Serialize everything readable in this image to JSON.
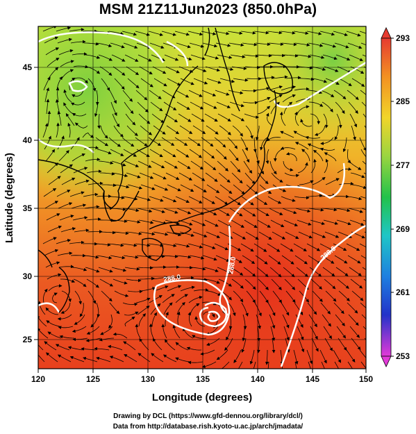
{
  "header": {
    "title": "MSM 21Z11Jun2023 (850.0hPa)"
  },
  "axes": {
    "xlabel": "Longitude (degrees)",
    "ylabel": "Latitude  (degrees)",
    "xticks": [
      "120",
      "125",
      "130",
      "135",
      "140",
      "145",
      "150"
    ],
    "yticks": [
      "25",
      "30",
      "35",
      "40",
      "45"
    ],
    "xlim": [
      120,
      150
    ],
    "ylim": [
      22.5,
      47.5
    ]
  },
  "colorbar": {
    "labels": [
      "293",
      "285",
      "277",
      "269",
      "261",
      "253"
    ],
    "min": 253,
    "max": 293
  },
  "contour_labels": [
    "285.0",
    "288.0",
    "288.0",
    "288.0"
  ],
  "colors": {
    "warm": "#e83a1c",
    "mid": "#f3a21f",
    "cool": "#8ed43a",
    "contour": "#ffffff"
  },
  "credits": {
    "line1": "Drawing by DCL (https://www.gfd-dennou.org/library/dcl/)",
    "line2": "Data from http://database.rish.kyoto-u.ac.jp/arch/jmadata/"
  }
}
